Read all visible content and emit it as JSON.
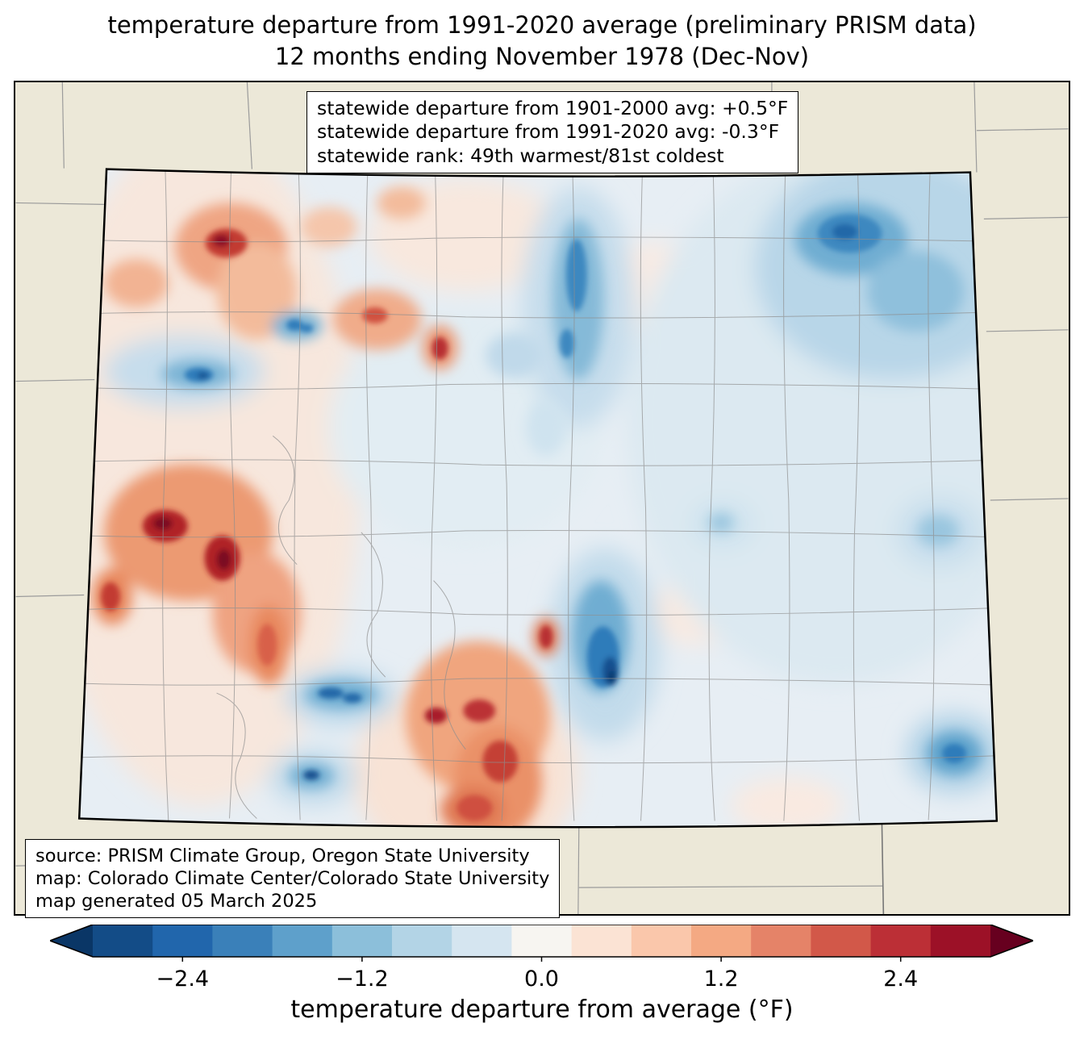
{
  "title": {
    "line1": "temperature departure from 1991-2020 average (preliminary PRISM data)",
    "line2": "12 months ending November 1978 (Dec-Nov)"
  },
  "stats_box": {
    "lines": [
      "statewide departure from 1901-2000 avg: +0.5°F",
      "statewide departure from 1991-2020 avg: -0.3°F",
      "statewide rank: 49th warmest/81st coldest"
    ]
  },
  "source_box": {
    "lines": [
      "source: PRISM Climate Group, Oregon State University",
      "map: Colorado Climate Center/Colorado State University",
      "map generated 05 March 2025"
    ]
  },
  "colorbar": {
    "label": "temperature departure from average (°F)",
    "ticks": [
      {
        "label": "−2.4",
        "pos": 10
      },
      {
        "label": "−1.2",
        "pos": 30
      },
      {
        "label": "0.0",
        "pos": 50
      },
      {
        "label": "1.2",
        "pos": 70
      },
      {
        "label": "2.4",
        "pos": 90
      }
    ],
    "segments": [
      "#134c87",
      "#2166ac",
      "#3a80b9",
      "#5ea0cb",
      "#8cbfda",
      "#b3d4e6",
      "#d5e5f0",
      "#f7f5f1",
      "#fbe3d4",
      "#fac7ab",
      "#f4a983",
      "#e58368",
      "#d25849",
      "#bc2f36",
      "#9c1127"
    ],
    "under_color": "#0a3666",
    "over_color": "#67001f",
    "outline_color": "#000000"
  },
  "map_colors": {
    "outside_background": "#ece8d8",
    "state_base": "#e7eef4",
    "county_line": "#8e8e8e",
    "state_border": "#000000"
  }
}
